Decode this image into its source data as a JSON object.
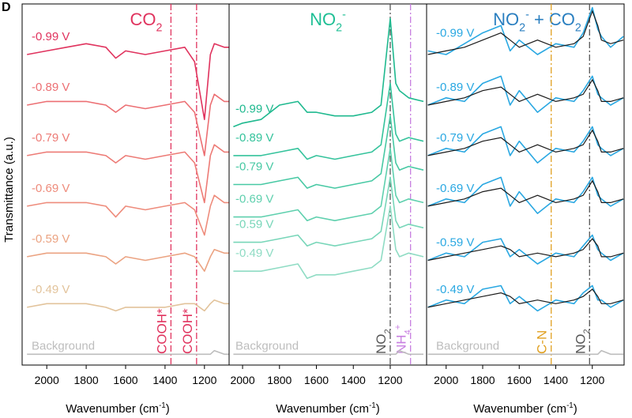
{
  "panel_label": "D",
  "ylabel": "Transmittance (a.u.)",
  "chart_data": [
    {
      "type": "line",
      "title_parts": [
        [
          "CO",
          "base"
        ],
        [
          "2",
          "sub"
        ]
      ],
      "title_color": "#e0335e",
      "xlim": [
        2125,
        1075
      ],
      "xticks": [
        2000,
        1800,
        1600,
        1400,
        1200
      ],
      "xlabel_parts": [
        [
          "Wavenumber (cm",
          "base"
        ],
        [
          "-1",
          "sup"
        ],
        [
          ")",
          "base"
        ]
      ],
      "ylim": [
        0,
        100
      ],
      "x": [
        2100,
        2000,
        1900,
        1800,
        1700,
        1650,
        1600,
        1500,
        1400,
        1300,
        1250,
        1200,
        1170,
        1150,
        1100,
        1075
      ],
      "series": [
        {
          "name": "-0.99 V",
          "color": "#e0335e",
          "values": [
            86,
            87,
            88,
            89,
            88,
            85,
            87,
            86,
            87,
            88,
            84,
            68,
            86,
            89,
            88,
            88
          ]
        },
        {
          "name": "-0.89 V",
          "color": "#ec6f73",
          "values": [
            72,
            73,
            73,
            73,
            72,
            70,
            72,
            71,
            72,
            73,
            70,
            58,
            72,
            75,
            73,
            73
          ]
        },
        {
          "name": "-0.79 V",
          "color": "#ed7b76",
          "values": [
            58,
            59,
            59,
            59,
            58,
            56,
            58,
            57,
            58,
            59,
            56,
            45,
            58,
            61,
            59,
            59
          ]
        },
        {
          "name": "-0.69 V",
          "color": "#ee8c7c",
          "values": [
            44,
            45,
            45,
            45,
            44,
            41,
            44,
            43,
            44,
            45,
            43,
            36,
            44,
            47,
            45,
            45
          ]
        },
        {
          "name": "-0.59 V",
          "color": "#eba382",
          "values": [
            30,
            31,
            31,
            31,
            30,
            28,
            30,
            29,
            30,
            31,
            30,
            26,
            30,
            32,
            31,
            31
          ]
        },
        {
          "name": "-0.49 V",
          "color": "#e2c39b",
          "values": [
            16,
            17,
            17,
            17,
            16,
            15,
            16,
            16,
            16,
            17,
            17,
            15,
            17,
            18,
            17,
            17
          ]
        },
        {
          "name": "Background",
          "color": "#bdbdbd",
          "values": [
            3,
            3,
            3,
            3,
            3,
            3,
            3,
            3,
            3,
            3,
            3,
            3,
            3,
            4,
            3,
            3
          ]
        }
      ],
      "markers": [
        {
          "x": 1370,
          "color": "#e0335e",
          "label_parts": [
            [
              "COOH*",
              "base"
            ]
          ]
        },
        {
          "x": 1240,
          "color": "#e0335e",
          "label_parts": [
            [
              "COOH*",
              "base"
            ]
          ]
        }
      ]
    },
    {
      "type": "line",
      "title_parts": [
        [
          "NO",
          "base"
        ],
        [
          "2",
          "sub"
        ],
        [
          "-",
          "sup"
        ]
      ],
      "title_color": "#1fbf95",
      "xlim": [
        2073,
        1003
      ],
      "xticks": [
        2000,
        1800,
        1600,
        1400,
        1200
      ],
      "xlabel_parts": [
        [
          "Wavenumber (cm",
          "base"
        ],
        [
          "-1",
          "sup"
        ],
        [
          ")",
          "base"
        ]
      ],
      "ylim": [
        0,
        100
      ],
      "x": [
        2050,
        2000,
        1900,
        1800,
        1700,
        1650,
        1600,
        1500,
        1400,
        1300,
        1250,
        1200,
        1170,
        1150,
        1100,
        1020
      ],
      "series": [
        {
          "name": "-0.99 V",
          "color": "#1fb98f",
          "values": [
            66,
            67,
            68,
            72,
            73,
            70,
            70,
            69,
            69,
            70,
            72,
            96,
            78,
            76,
            74,
            73
          ]
        },
        {
          "name": "-0.89 V",
          "color": "#35c39c",
          "values": [
            58,
            58,
            58,
            59,
            60,
            57,
            58,
            57,
            58,
            59,
            61,
            78,
            64,
            62,
            63,
            62
          ]
        },
        {
          "name": "-0.79 V",
          "color": "#48c9a4",
          "values": [
            50,
            50,
            50,
            51,
            52,
            49,
            50,
            49,
            50,
            51,
            53,
            69,
            56,
            54,
            55,
            54
          ]
        },
        {
          "name": "-0.69 V",
          "color": "#5fd0ae",
          "values": [
            41,
            41,
            41,
            42,
            43,
            40,
            41,
            40,
            41,
            42,
            44,
            60,
            47,
            45,
            46,
            45
          ]
        },
        {
          "name": "-0.59 V",
          "color": "#78d6b9",
          "values": [
            34,
            34,
            34,
            35,
            36,
            33,
            34,
            33,
            34,
            35,
            37,
            52,
            40,
            38,
            39,
            38
          ]
        },
        {
          "name": "-0.49 V",
          "color": "#8fdcc4",
          "values": [
            26,
            26,
            26,
            27,
            28,
            24,
            25,
            25,
            26,
            27,
            29,
            44,
            32,
            30,
            31,
            30
          ]
        },
        {
          "name": "Background",
          "color": "#bdbdbd",
          "values": [
            3,
            3,
            3,
            3,
            3,
            3,
            3,
            3,
            3,
            3,
            3,
            3,
            3,
            4,
            3,
            3
          ]
        }
      ],
      "markers": [
        {
          "x": 1200,
          "color": "#555555",
          "label_parts": [
            [
              "NO",
              "base"
            ],
            [
              "2",
              "sub"
            ]
          ]
        },
        {
          "x": 1090,
          "color": "#c77ee0",
          "label_parts": [
            [
              "NH",
              "base"
            ],
            [
              "4",
              "sub"
            ],
            [
              "+",
              "sup"
            ]
          ]
        }
      ]
    },
    {
      "type": "line",
      "title_parts": [
        [
          "NO",
          "base"
        ],
        [
          "2",
          "sub"
        ],
        [
          "-",
          "sup"
        ],
        [
          " + CO",
          "base"
        ],
        [
          "2",
          "sub"
        ]
      ],
      "title_color": "#2a7fc0",
      "xlim": [
        2107,
        1026
      ],
      "xticks": [
        2000,
        1800,
        1600,
        1400,
        1200
      ],
      "xlabel_parts": [
        [
          "Wavenumber (cm",
          "base"
        ],
        [
          "-1",
          "sup"
        ],
        [
          ")",
          "base"
        ]
      ],
      "ylim": [
        0,
        100
      ],
      "fit_color": "#1a1a1a",
      "x": [
        2100,
        2000,
        1900,
        1800,
        1700,
        1650,
        1600,
        1500,
        1400,
        1300,
        1250,
        1200,
        1170,
        1150,
        1100,
        1030
      ],
      "series": [
        {
          "name": "-0.99 V",
          "color": "#2aa8e2",
          "values": [
            87,
            86,
            89,
            92,
            94,
            87,
            90,
            86,
            89,
            88,
            92,
            99,
            93,
            91,
            88,
            91
          ],
          "fit": [
            86,
            87,
            88,
            90,
            92,
            90,
            88,
            90,
            88,
            89,
            91,
            98,
            94,
            90,
            89,
            90
          ]
        },
        {
          "name": "-0.89 V",
          "color": "#2aa8e2",
          "values": [
            72,
            74,
            73,
            78,
            80,
            72,
            76,
            70,
            74,
            73,
            76,
            80,
            75,
            74,
            72,
            74
          ],
          "fit": [
            72,
            73,
            74,
            76,
            77,
            75,
            73,
            75,
            73,
            74,
            75,
            79,
            76,
            73,
            73,
            74
          ]
        },
        {
          "name": "-0.79 V",
          "color": "#2aa8e2",
          "values": [
            58,
            60,
            59,
            64,
            66,
            58,
            62,
            56,
            60,
            59,
            62,
            66,
            61,
            60,
            58,
            60
          ],
          "fit": [
            58,
            59,
            60,
            62,
            63,
            61,
            59,
            61,
            59,
            60,
            61,
            65,
            62,
            59,
            59,
            60
          ]
        },
        {
          "name": "-0.69 V",
          "color": "#2aa8e2",
          "values": [
            44,
            46,
            45,
            50,
            52,
            44,
            48,
            42,
            46,
            45,
            48,
            52,
            47,
            46,
            44,
            46
          ],
          "fit": [
            44,
            45,
            46,
            48,
            49,
            47,
            45,
            47,
            45,
            46,
            47,
            51,
            48,
            45,
            45,
            46
          ]
        },
        {
          "name": "-0.59 V",
          "color": "#2aa8e2",
          "values": [
            29,
            31,
            30,
            34,
            35,
            30,
            32,
            28,
            31,
            30,
            33,
            36,
            32,
            31,
            29,
            31
          ],
          "fit": [
            29,
            30,
            31,
            32,
            33,
            32,
            30,
            31,
            30,
            31,
            32,
            35,
            33,
            30,
            30,
            31
          ]
        },
        {
          "name": "-0.49 V",
          "color": "#2aa8e2",
          "values": [
            16,
            18,
            17,
            21,
            22,
            17,
            19,
            15,
            18,
            17,
            20,
            22,
            18,
            18,
            16,
            18
          ],
          "fit": [
            16,
            17,
            18,
            19,
            20,
            19,
            17,
            18,
            17,
            18,
            19,
            21,
            19,
            17,
            17,
            18
          ]
        },
        {
          "name": "Background",
          "color": "#bdbdbd",
          "values": [
            3,
            3,
            3,
            3,
            3,
            3,
            3,
            3,
            3,
            3,
            3,
            3,
            3,
            4,
            3,
            3
          ]
        }
      ],
      "markers": [
        {
          "x": 1425,
          "color": "#e0a020",
          "label_parts": [
            [
              "C-N",
              "base"
            ]
          ]
        },
        {
          "x": 1215,
          "color": "#555555",
          "label_parts": [
            [
              "NO",
              "base"
            ],
            [
              "2",
              "sub"
            ]
          ]
        }
      ]
    }
  ]
}
